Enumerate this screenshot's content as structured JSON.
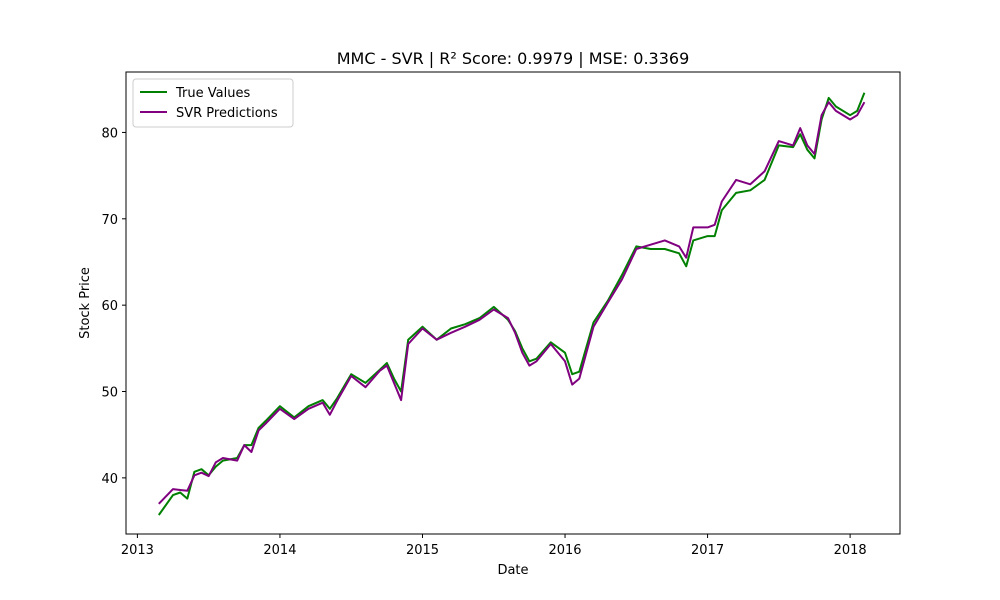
{
  "chart_data": {
    "type": "line",
    "title": "MMC - SVR | R² Score: 0.9979 | MSE: 0.3369",
    "xlabel": "Date",
    "ylabel": "Stock Price",
    "xlim": [
      2012.92,
      2018.35
    ],
    "ylim": [
      33.5,
      87.0
    ],
    "x_ticks": [
      2013,
      2014,
      2015,
      2016,
      2017,
      2018
    ],
    "x_tick_labels": [
      "2013",
      "2014",
      "2015",
      "2016",
      "2017",
      "2018"
    ],
    "y_ticks": [
      40,
      50,
      60,
      70,
      80
    ],
    "y_tick_labels": [
      "40",
      "50",
      "60",
      "70",
      "80"
    ],
    "grid": false,
    "legend": "top-left",
    "series": [
      {
        "name": "True Values",
        "color": "#008000",
        "x": [
          2013.15,
          2013.25,
          2013.3,
          2013.35,
          2013.4,
          2013.45,
          2013.5,
          2013.55,
          2013.6,
          2013.7,
          2013.75,
          2013.8,
          2013.85,
          2013.9,
          2014.0,
          2014.1,
          2014.2,
          2014.3,
          2014.35,
          2014.4,
          2014.5,
          2014.6,
          2014.7,
          2014.75,
          2014.8,
          2014.85,
          2014.9,
          2015.0,
          2015.1,
          2015.2,
          2015.3,
          2015.4,
          2015.5,
          2015.6,
          2015.65,
          2015.7,
          2015.75,
          2015.8,
          2015.9,
          2016.0,
          2016.05,
          2016.1,
          2016.2,
          2016.3,
          2016.4,
          2016.5,
          2016.6,
          2016.7,
          2016.8,
          2016.85,
          2016.9,
          2017.0,
          2017.05,
          2017.1,
          2017.2,
          2017.3,
          2017.4,
          2017.5,
          2017.6,
          2017.65,
          2017.7,
          2017.75,
          2017.8,
          2017.85,
          2017.9,
          2018.0,
          2018.05,
          2018.1
        ],
        "y": [
          35.7,
          38.0,
          38.3,
          37.6,
          40.7,
          41.0,
          40.3,
          41.3,
          42.0,
          42.3,
          43.8,
          43.8,
          45.8,
          46.6,
          48.3,
          47.0,
          48.3,
          49.0,
          48.0,
          49.2,
          52.0,
          51.0,
          52.5,
          53.3,
          51.5,
          50.0,
          56.0,
          57.5,
          56.0,
          57.3,
          57.8,
          58.5,
          59.8,
          58.3,
          57.0,
          55.0,
          53.5,
          53.8,
          55.7,
          54.5,
          52.0,
          52.3,
          58.0,
          60.5,
          63.5,
          66.8,
          66.5,
          66.5,
          66.0,
          64.5,
          67.5,
          68.0,
          68.0,
          71.0,
          73.0,
          73.3,
          74.5,
          78.5,
          78.3,
          79.8,
          78.0,
          77.0,
          81.5,
          84.0,
          83.0,
          82.0,
          82.5,
          84.6
        ]
      },
      {
        "name": "SVR Predictions",
        "color": "#800080",
        "x": [
          2013.15,
          2013.25,
          2013.3,
          2013.35,
          2013.4,
          2013.45,
          2013.5,
          2013.55,
          2013.6,
          2013.7,
          2013.75,
          2013.8,
          2013.85,
          2013.9,
          2014.0,
          2014.1,
          2014.2,
          2014.3,
          2014.35,
          2014.4,
          2014.5,
          2014.6,
          2014.7,
          2014.75,
          2014.8,
          2014.85,
          2014.9,
          2015.0,
          2015.1,
          2015.2,
          2015.3,
          2015.4,
          2015.5,
          2015.6,
          2015.65,
          2015.7,
          2015.75,
          2015.8,
          2015.9,
          2016.0,
          2016.05,
          2016.1,
          2016.2,
          2016.3,
          2016.4,
          2016.5,
          2016.6,
          2016.7,
          2016.8,
          2016.85,
          2016.9,
          2017.0,
          2017.05,
          2017.1,
          2017.2,
          2017.3,
          2017.4,
          2017.5,
          2017.6,
          2017.65,
          2017.7,
          2017.75,
          2017.8,
          2017.85,
          2017.9,
          2018.0,
          2018.05,
          2018.1
        ],
        "y": [
          37.0,
          38.7,
          38.6,
          38.5,
          40.3,
          40.6,
          40.2,
          41.8,
          42.3,
          42.0,
          43.8,
          43.0,
          45.5,
          46.3,
          48.0,
          46.8,
          48.0,
          48.7,
          47.3,
          48.9,
          51.8,
          50.5,
          52.4,
          53.0,
          51.0,
          49.0,
          55.5,
          57.3,
          56.0,
          56.8,
          57.5,
          58.3,
          59.5,
          58.5,
          56.8,
          54.5,
          53.0,
          53.5,
          55.5,
          53.5,
          50.8,
          51.5,
          57.5,
          60.3,
          63.0,
          66.5,
          67.0,
          67.5,
          66.8,
          65.5,
          69.0,
          69.0,
          69.3,
          72.0,
          74.5,
          74.0,
          75.5,
          79.0,
          78.5,
          80.5,
          78.5,
          77.5,
          82.0,
          83.5,
          82.5,
          81.5,
          82.0,
          83.5
        ]
      }
    ]
  }
}
